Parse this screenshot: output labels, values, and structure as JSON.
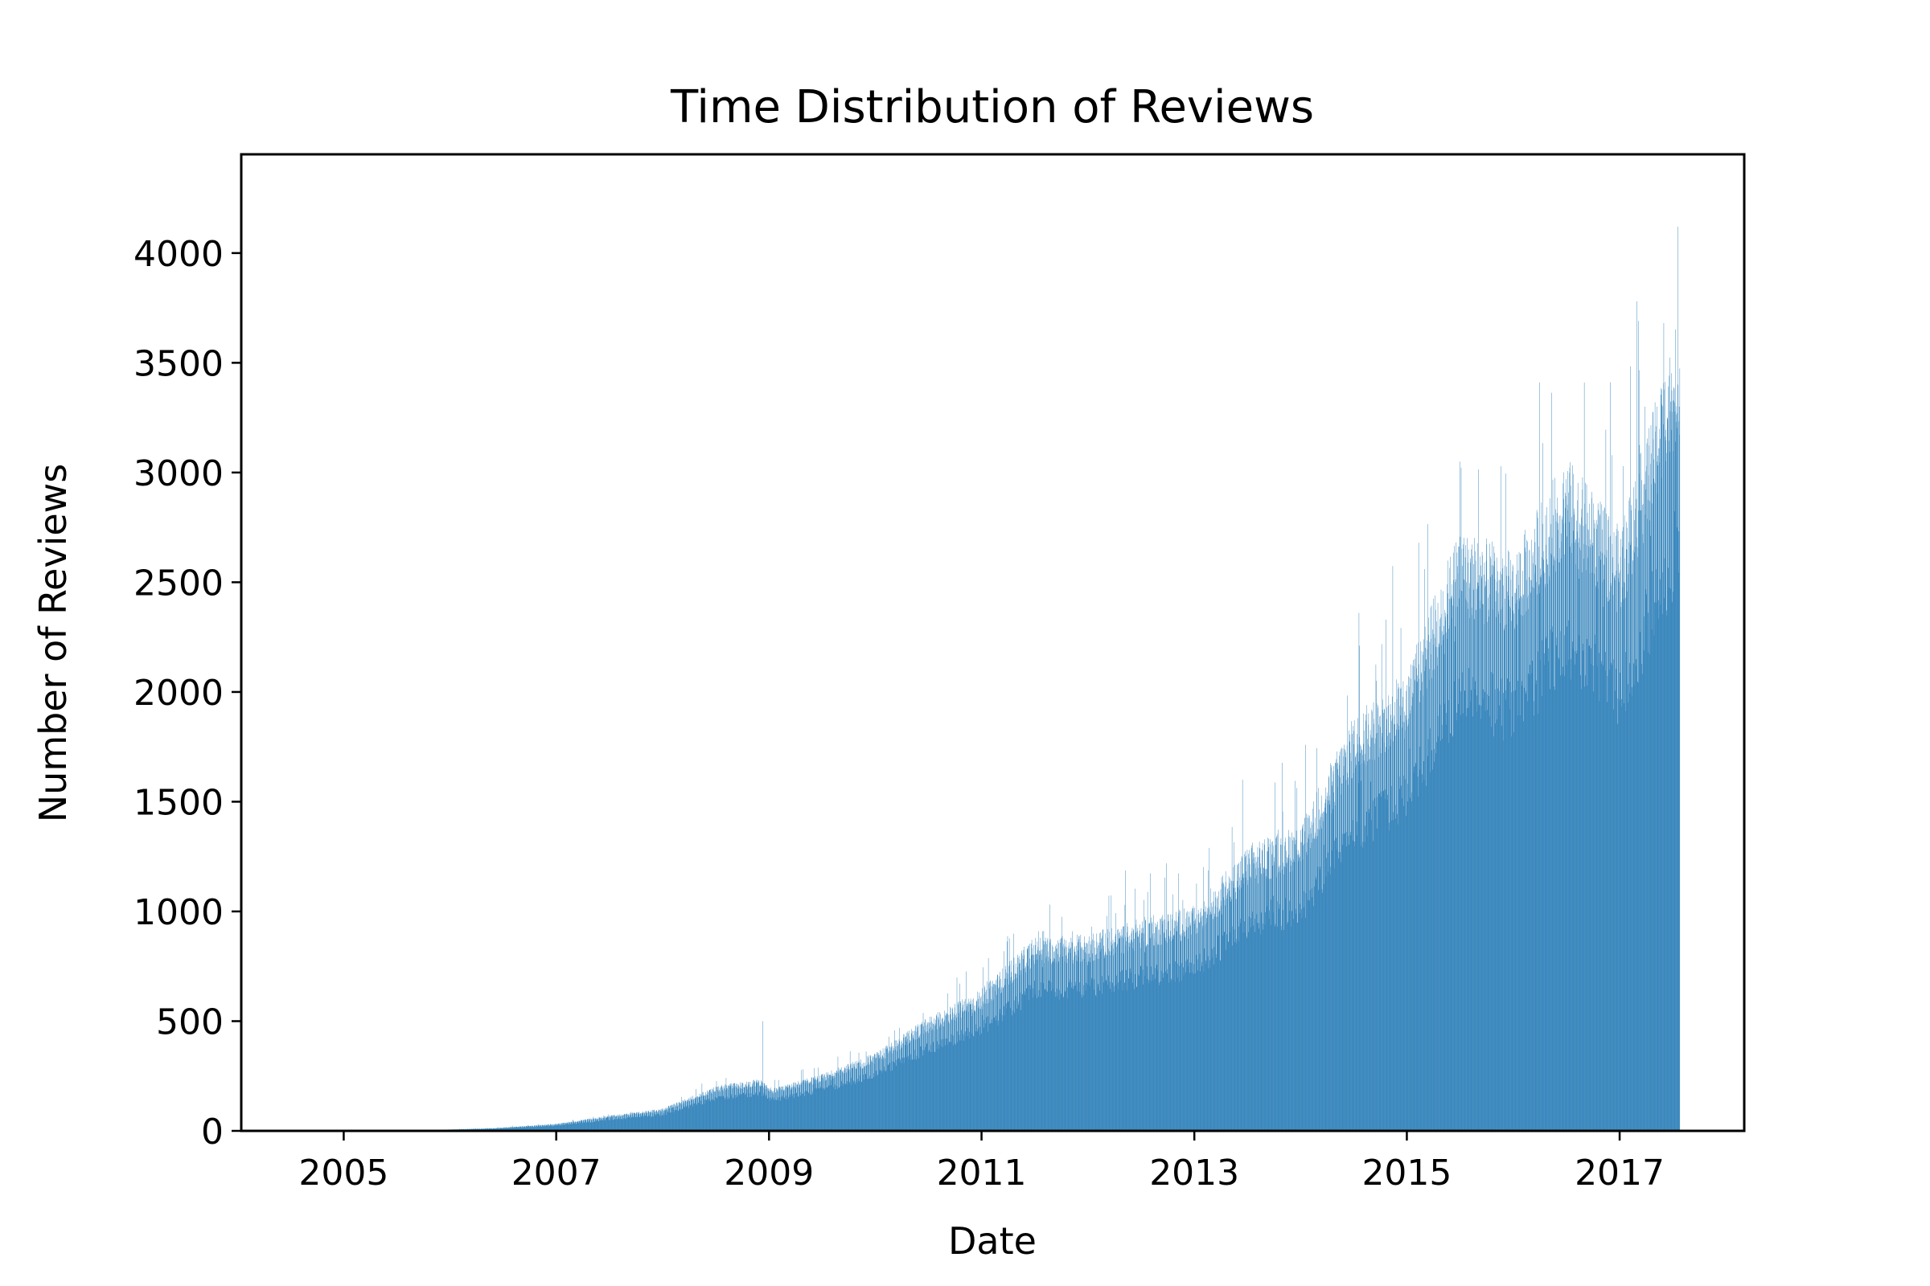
{
  "chart_data": {
    "type": "bar",
    "title": "Time Distribution of Reviews",
    "xlabel": "Date",
    "ylabel": "Number of Reviews",
    "xlim": [
      "2004-01-15",
      "2018-03-05"
    ],
    "ylim": [
      0,
      4450
    ],
    "x_ticks": [
      "2005",
      "2007",
      "2009",
      "2011",
      "2013",
      "2015",
      "2017"
    ],
    "y_ticks": [
      0,
      500,
      1000,
      1500,
      2000,
      2500,
      3000,
      3500,
      4000
    ],
    "bar_color": "#1f77b4",
    "grid": false,
    "legend": "none",
    "bin": "daily",
    "start_date": "2005-10-15",
    "end_date": "2017-07-26",
    "trend_points": [
      [
        "2005-10-15",
        3
      ],
      [
        "2006-06-01",
        12
      ],
      [
        "2007-01-01",
        30
      ],
      [
        "2007-07-01",
        65
      ],
      [
        "2008-01-01",
        95
      ],
      [
        "2008-07-01",
        190
      ],
      [
        "2008-12-01",
        220
      ],
      [
        "2009-01-15",
        180
      ],
      [
        "2009-07-01",
        240
      ],
      [
        "2010-01-01",
        330
      ],
      [
        "2010-07-01",
        480
      ],
      [
        "2011-01-01",
        600
      ],
      [
        "2011-07-01",
        820
      ],
      [
        "2012-01-01",
        830
      ],
      [
        "2012-07-01",
        900
      ],
      [
        "2013-01-01",
        950
      ],
      [
        "2013-07-01",
        1200
      ],
      [
        "2014-01-01",
        1300
      ],
      [
        "2014-07-01",
        1750
      ],
      [
        "2015-01-01",
        1950
      ],
      [
        "2015-07-01",
        2550
      ],
      [
        "2016-01-01",
        2450
      ],
      [
        "2016-07-01",
        2850
      ],
      [
        "2017-01-01",
        2550
      ],
      [
        "2017-07-26",
        3450
      ]
    ],
    "peaks": [
      [
        "2008-12-10",
        500
      ],
      [
        "2013-06-15",
        1600
      ],
      [
        "2014-07-20",
        2360
      ],
      [
        "2015-07-01",
        3050
      ],
      [
        "2016-04-01",
        3410
      ],
      [
        "2016-09-01",
        3410
      ],
      [
        "2017-03-01",
        3780
      ],
      [
        "2017-07-20",
        4120
      ]
    ]
  }
}
